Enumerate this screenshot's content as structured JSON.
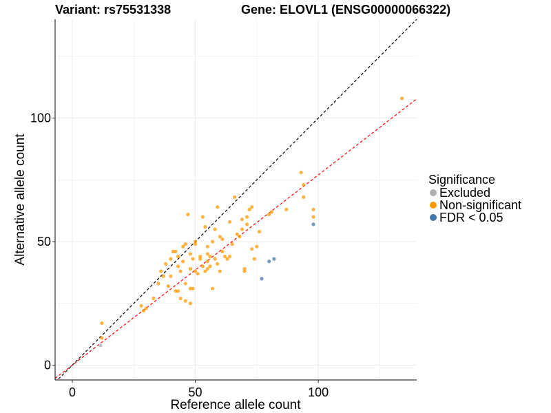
{
  "title_left": "Variant: rs75531338",
  "title_right": "Gene: ELOVL1 (ENSG00000066322)",
  "colors": {
    "excluded": "#b0b0b0",
    "non_significant": "#ff9900",
    "significant": "#4477aa",
    "identity_line": "#000000",
    "fit_line": "#ff0000",
    "grid": "#ebebeb"
  },
  "legend": {
    "title": "Significance",
    "items": [
      {
        "label": "Excluded",
        "color": "#b0b0b0"
      },
      {
        "label": "Non-significant",
        "color": "#ff9900"
      },
      {
        "label": "FDR < 0.05",
        "color": "#4477aa"
      }
    ]
  },
  "chart_data": {
    "type": "scatter",
    "xlabel": "Reference allele count",
    "ylabel": "Alternative allele count",
    "xlim": [
      -7,
      140
    ],
    "ylim": [
      -6,
      140
    ],
    "xticks": [
      0,
      50,
      100
    ],
    "yticks": [
      0,
      50,
      100
    ],
    "grid": true,
    "legend_position": "right",
    "lines": [
      {
        "style": "dashed",
        "color": "#000000",
        "slope": 1.0,
        "intercept": 0
      },
      {
        "style": "dashed",
        "color": "#ff0000",
        "slope": 0.77,
        "intercept": 0
      }
    ],
    "series": [
      {
        "name": "Excluded",
        "color": "#b0b0b0",
        "points": [
          [
            11.5,
            8
          ]
        ]
      },
      {
        "name": "Non-significant",
        "color": "#ff9900",
        "points": [
          [
            12,
            17
          ],
          [
            12,
            11
          ],
          [
            28,
            24
          ],
          [
            29,
            22
          ],
          [
            30,
            23
          ],
          [
            33,
            27
          ],
          [
            35,
            33
          ],
          [
            36,
            38
          ],
          [
            37,
            36
          ],
          [
            38,
            41
          ],
          [
            39,
            32
          ],
          [
            40,
            36
          ],
          [
            40,
            43
          ],
          [
            41,
            46
          ],
          [
            42,
            46
          ],
          [
            42,
            30
          ],
          [
            43,
            44
          ],
          [
            43,
            30
          ],
          [
            43,
            40
          ],
          [
            44,
            27
          ],
          [
            44,
            38
          ],
          [
            45,
            42
          ],
          [
            45,
            48
          ],
          [
            46,
            33
          ],
          [
            46,
            26
          ],
          [
            46,
            49
          ],
          [
            47,
            61
          ],
          [
            48,
            39
          ],
          [
            48,
            31
          ],
          [
            48,
            45
          ],
          [
            48,
            25
          ],
          [
            49,
            43
          ],
          [
            49,
            31
          ],
          [
            50,
            49
          ],
          [
            50,
            50
          ],
          [
            50,
            38
          ],
          [
            51,
            37
          ],
          [
            52,
            43
          ],
          [
            52,
            44
          ],
          [
            53,
            40
          ],
          [
            53,
            60
          ],
          [
            54,
            38
          ],
          [
            54,
            56
          ],
          [
            55,
            39
          ],
          [
            55,
            42
          ],
          [
            55,
            45
          ],
          [
            55,
            48
          ],
          [
            56,
            40
          ],
          [
            56,
            44
          ],
          [
            57,
            31
          ],
          [
            57,
            50
          ],
          [
            58,
            43
          ],
          [
            58,
            55
          ],
          [
            59,
            41
          ],
          [
            59,
            64
          ],
          [
            60,
            52
          ],
          [
            60,
            38
          ],
          [
            61,
            51
          ],
          [
            61,
            46
          ],
          [
            62,
            44
          ],
          [
            63,
            43
          ],
          [
            64,
            58
          ],
          [
            64,
            44
          ],
          [
            65,
            49
          ],
          [
            66,
            68
          ],
          [
            67,
            53
          ],
          [
            68,
            52
          ],
          [
            69,
            59
          ],
          [
            69,
            55
          ],
          [
            70,
            39
          ],
          [
            70,
            38
          ],
          [
            71,
            57
          ],
          [
            71,
            60
          ],
          [
            72,
            63
          ],
          [
            73,
            47
          ],
          [
            73,
            64
          ],
          [
            74,
            43
          ],
          [
            75,
            48
          ],
          [
            76,
            54
          ],
          [
            80,
            61
          ],
          [
            81,
            62
          ],
          [
            87,
            63
          ],
          [
            93,
            78
          ],
          [
            94,
            73
          ],
          [
            94,
            68
          ],
          [
            98,
            63
          ],
          [
            98,
            60
          ],
          [
            134,
            108
          ]
        ]
      },
      {
        "name": "FDR < 0.05",
        "color": "#4477aa",
        "points": [
          [
            77,
            35
          ],
          [
            80,
            42
          ],
          [
            82,
            43
          ],
          [
            98,
            57
          ]
        ]
      }
    ]
  }
}
